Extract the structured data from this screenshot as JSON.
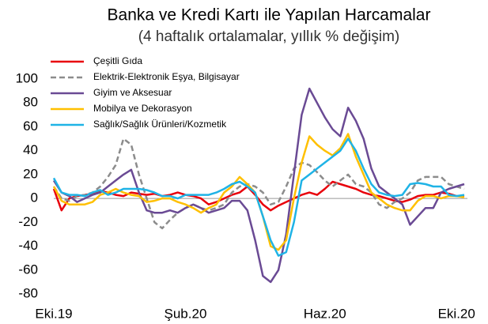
{
  "chart_data": {
    "type": "line",
    "title": "Banka ve Kredi Kartı ile Yapılan Harcamalar",
    "subtitle": "(4 haftalık ortalamalar, yıllık % değişim)",
    "categories": [
      "Eki.19",
      null,
      null,
      null,
      null,
      null,
      null,
      null,
      null,
      null,
      null,
      null,
      null,
      null,
      null,
      null,
      null,
      "Şub.20",
      null,
      null,
      null,
      null,
      null,
      null,
      null,
      null,
      null,
      null,
      null,
      null,
      null,
      null,
      null,
      null,
      null,
      "Haz.20",
      null,
      null,
      null,
      null,
      null,
      null,
      null,
      null,
      null,
      null,
      null,
      null,
      null,
      null,
      null,
      null,
      "Eki.20",
      null
    ],
    "ylim": [
      -80,
      100
    ],
    "yticks": [
      -80,
      -60,
      -40,
      -20,
      0,
      20,
      40,
      60,
      80,
      100
    ],
    "legend": "top-left",
    "series": [
      {
        "name": "Çeşitli Gıda",
        "color": "#e8000b",
        "dash": false,
        "values": [
          8,
          -10,
          0,
          2,
          3,
          4,
          6,
          5,
          3,
          2,
          5,
          4,
          3,
          4,
          2,
          3,
          5,
          3,
          2,
          0,
          -5,
          -3,
          0,
          3,
          5,
          10,
          3,
          -5,
          -10,
          -6,
          -3,
          0,
          3,
          5,
          3,
          8,
          14,
          12,
          10,
          8,
          5,
          3,
          2,
          0,
          -2,
          -3,
          -1,
          2,
          3,
          3,
          5,
          4,
          2,
          2
        ]
      },
      {
        "name": "Elektrik-Elektronik Eşya, Bilgisayar",
        "color": "#8c8c8c",
        "dash": true,
        "values": [
          10,
          0,
          -2,
          2,
          3,
          5,
          10,
          18,
          28,
          50,
          45,
          20,
          0,
          -20,
          -25,
          -18,
          -12,
          -8,
          -5,
          -8,
          -10,
          -8,
          -5,
          5,
          10,
          12,
          10,
          5,
          -5,
          -3,
          10,
          25,
          30,
          28,
          22,
          15,
          10,
          15,
          20,
          12,
          10,
          5,
          -5,
          -8,
          -3,
          0,
          5,
          15,
          18,
          18,
          18,
          12,
          10,
          8
        ]
      },
      {
        "name": "Giyim ve Aksesuar",
        "color": "#6a4a94",
        "dash": false,
        "values": [
          15,
          5,
          2,
          -3,
          0,
          3,
          5,
          10,
          15,
          20,
          24,
          5,
          -10,
          -12,
          -12,
          -10,
          -12,
          -8,
          -5,
          -8,
          -12,
          -10,
          -8,
          -2,
          -2,
          -10,
          -35,
          -65,
          -70,
          -60,
          -30,
          20,
          70,
          92,
          80,
          68,
          58,
          52,
          76,
          65,
          50,
          25,
          10,
          5,
          0,
          -5,
          -22,
          -15,
          -8,
          -8,
          5,
          8,
          10,
          12
        ]
      },
      {
        "name": "Mobilya ve Dekorasyon",
        "color": "#ffc000",
        "dash": false,
        "values": [
          10,
          -2,
          -5,
          -5,
          -5,
          -3,
          3,
          5,
          8,
          5,
          3,
          2,
          -3,
          -2,
          0,
          0,
          -3,
          -5,
          -8,
          -12,
          -8,
          -5,
          5,
          10,
          18,
          12,
          5,
          -15,
          -40,
          -43,
          -35,
          0,
          30,
          52,
          45,
          40,
          36,
          42,
          54,
          35,
          20,
          5,
          0,
          -5,
          -8,
          -10,
          -10,
          -2,
          2,
          2,
          0,
          2,
          2,
          1
        ]
      },
      {
        "name": "Sağlık/Sağlık Ürünleri/Kozmetik",
        "color": "#1fb3e6",
        "dash": false,
        "values": [
          17,
          5,
          3,
          3,
          2,
          5,
          7,
          3,
          5,
          8,
          8,
          8,
          7,
          5,
          2,
          2,
          0,
          3,
          3,
          3,
          3,
          5,
          8,
          12,
          14,
          10,
          5,
          -15,
          -35,
          -48,
          -45,
          -20,
          15,
          20,
          25,
          30,
          35,
          40,
          50,
          40,
          25,
          12,
          5,
          3,
          2,
          3,
          12,
          13,
          12,
          10,
          10,
          3,
          2,
          3
        ]
      }
    ]
  }
}
